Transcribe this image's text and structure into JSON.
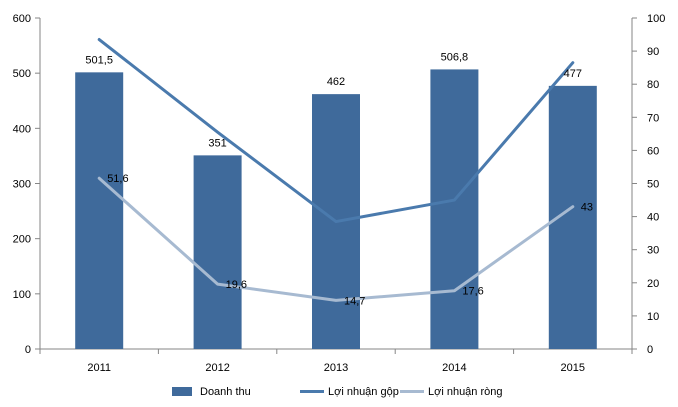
{
  "chart_data": {
    "type": "bar",
    "categories": [
      "2011",
      "2012",
      "2013",
      "2014",
      "2015"
    ],
    "series": [
      {
        "name": "Doanh thu",
        "type": "bar",
        "axis": "left",
        "values": [
          501.5,
          351,
          462,
          506.8,
          477
        ],
        "labels": [
          "501,5",
          "351",
          "462",
          "506,8",
          "477"
        ],
        "color": "#3f6a9b"
      },
      {
        "name": "Lợi nhuận gộp",
        "type": "line",
        "axis": "right",
        "values": [
          93.5,
          65.5,
          38.5,
          45,
          86.5
        ],
        "color": "#4a7aad"
      },
      {
        "name": "Lợi nhuận ròng",
        "type": "line",
        "axis": "right",
        "values": [
          51.6,
          19.6,
          14.7,
          17.6,
          43
        ],
        "labels": [
          "51,6",
          "19,6",
          "14,7",
          "17,6",
          "43"
        ],
        "color": "#a7bad1"
      }
    ],
    "y_left": {
      "min": 0,
      "max": 600,
      "ticks": [
        "0",
        "100",
        "200",
        "300",
        "400",
        "500",
        "600"
      ]
    },
    "y_right": {
      "min": 0,
      "max": 100,
      "ticks": [
        "0",
        "10",
        "20",
        "30",
        "40",
        "50",
        "60",
        "70",
        "80",
        "90",
        "100"
      ]
    },
    "grid": false,
    "legend_position": "bottom"
  }
}
